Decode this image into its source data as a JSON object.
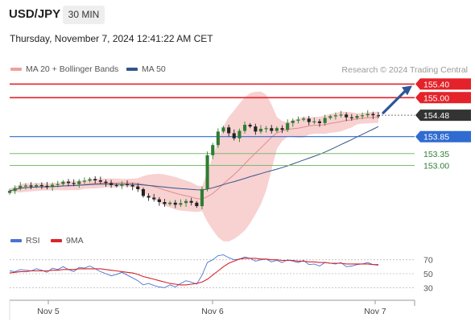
{
  "header": {
    "symbol": "USD/JPY",
    "timeframe": "30 MIN",
    "timestamp": "Thursday, November 7, 2024 12:41:22 AM CET",
    "credit": "Research © 2024 Trading Central"
  },
  "legend": {
    "ma20_bb": "MA 20 + Bollinger Bands",
    "ma50": "MA 50",
    "rsi": "RSI",
    "rsi_ma": "9MA"
  },
  "colors": {
    "resistance": "#e4222a",
    "support_blue": "#2f6bd0",
    "support_green": "#7dbb6e",
    "current_price": "#333333",
    "bollinger_fill": "#f7c9c9",
    "ma20": "#e28c8c",
    "ma50": "#34558a",
    "candle_up": "#2e7d32",
    "candle_down": "#222222",
    "rsi": "#4a72d2",
    "rsi_ma": "#d8232a",
    "arrow": "#2b5797"
  },
  "chart_data": [
    {
      "type": "candlestick",
      "title": "USD/JPY",
      "timeframe": "30 MIN",
      "x_ticks": [
        "Nov 5",
        "Nov 6",
        "Nov 7"
      ],
      "ylim": [
        151.35,
        155.6
      ],
      "grid": false,
      "legend_position": "top-left",
      "current_price": 154.48,
      "levels": [
        {
          "value": 155.4,
          "label": "155.40",
          "kind": "resistance"
        },
        {
          "value": 155.0,
          "label": "155.00",
          "kind": "resistance"
        },
        {
          "value": 154.48,
          "label": "154.48",
          "kind": "current"
        },
        {
          "value": 153.85,
          "label": "153.85",
          "kind": "support"
        },
        {
          "value": 153.35,
          "label": "153.35",
          "kind": "support-minor"
        },
        {
          "value": 153.0,
          "label": "153.00",
          "kind": "support-minor"
        }
      ],
      "forecast_arrow": {
        "from": 154.55,
        "to": 155.4
      },
      "close_series": [
        152.25,
        152.33,
        152.4,
        152.41,
        152.38,
        152.42,
        152.4,
        152.36,
        152.43,
        152.45,
        152.52,
        152.48,
        152.45,
        152.53,
        152.55,
        152.6,
        152.56,
        152.52,
        152.48,
        152.42,
        152.4,
        152.45,
        152.42,
        152.38,
        152.3,
        152.1,
        152.05,
        152.0,
        151.92,
        151.86,
        151.9,
        151.84,
        151.89,
        151.95,
        151.9,
        151.8,
        152.3,
        153.3,
        153.6,
        154.0,
        154.12,
        153.95,
        153.8,
        154.02,
        154.2,
        154.15,
        154.0,
        154.08,
        154.1,
        154.02,
        154.1,
        154.05,
        154.25,
        154.32,
        154.35,
        154.38,
        154.28,
        154.3,
        154.25,
        154.4,
        154.45,
        154.48,
        154.5,
        154.42,
        154.4,
        154.46,
        154.48,
        154.52,
        154.48,
        154.47
      ]
    },
    {
      "type": "line",
      "title": "RSI",
      "ylim": [
        20,
        80
      ],
      "y_ticks": [
        70,
        50,
        30
      ],
      "series": [
        {
          "name": "RSI",
          "values": [
            54,
            53,
            56,
            55,
            54,
            57,
            55,
            52,
            58,
            56,
            60,
            56,
            53,
            59,
            58,
            61,
            57,
            53,
            50,
            47,
            49,
            52,
            48,
            44,
            40,
            34,
            36,
            33,
            31,
            30,
            34,
            31,
            36,
            40,
            38,
            35,
            48,
            66,
            70,
            76,
            77,
            73,
            70,
            71,
            74,
            72,
            68,
            70,
            71,
            67,
            69,
            66,
            70,
            68,
            66,
            69,
            63,
            64,
            61,
            66,
            65,
            64,
            66,
            60,
            61,
            63,
            64,
            66,
            63,
            62
          ]
        },
        {
          "name": "9MA",
          "values": [
            51,
            52,
            53,
            53,
            54,
            54,
            54,
            54,
            55,
            55,
            56,
            56,
            56,
            57,
            57,
            57,
            57,
            57,
            56,
            55,
            54,
            53,
            52,
            51,
            49,
            46,
            44,
            42,
            40,
            38,
            36,
            35,
            34,
            34,
            35,
            36,
            38,
            42,
            48,
            54,
            60,
            65,
            68,
            71,
            72,
            72,
            72,
            71,
            71,
            70,
            70,
            69,
            69,
            69,
            68,
            68,
            67,
            67,
            66,
            66,
            65,
            65,
            65,
            64,
            64,
            64,
            64,
            64,
            63,
            63
          ]
        }
      ]
    }
  ]
}
